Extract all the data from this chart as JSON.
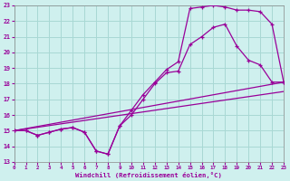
{
  "xlabel": "Windchill (Refroidissement éolien,°C)",
  "bg_color": "#cff0ee",
  "grid_color": "#a8d8d4",
  "line_color": "#990099",
  "xlim": [
    0,
    23
  ],
  "ylim": [
    13,
    23
  ],
  "yticks": [
    13,
    14,
    15,
    16,
    17,
    18,
    19,
    20,
    21,
    22,
    23
  ],
  "xticks": [
    0,
    1,
    2,
    3,
    4,
    5,
    6,
    7,
    8,
    9,
    10,
    11,
    12,
    13,
    14,
    15,
    16,
    17,
    18,
    19,
    20,
    21,
    22,
    23
  ],
  "series1_x": [
    0,
    1,
    2,
    3,
    4,
    5,
    6,
    7,
    8,
    9,
    10,
    11,
    12,
    13,
    14,
    15,
    16,
    17,
    18,
    19,
    20,
    21,
    22,
    23
  ],
  "series1_y": [
    15,
    15,
    14.7,
    14.9,
    15.1,
    15.2,
    14.9,
    13.7,
    13.5,
    15.3,
    16.3,
    17.3,
    18.1,
    18.9,
    19.4,
    22.8,
    22.9,
    23.0,
    22.9,
    22.7,
    22.7,
    22.6,
    21.8,
    18.1
  ],
  "series2_x": [
    0,
    1,
    2,
    3,
    4,
    5,
    6,
    7,
    8,
    9,
    10,
    11,
    12,
    13,
    14,
    15,
    16,
    17,
    18,
    19,
    20,
    21,
    22,
    23
  ],
  "series2_y": [
    15,
    15,
    14.7,
    14.9,
    15.1,
    15.2,
    14.9,
    13.7,
    13.5,
    15.3,
    16.0,
    17.0,
    18.0,
    18.7,
    18.8,
    20.5,
    21.0,
    21.6,
    21.8,
    20.4,
    19.5,
    19.2,
    18.1,
    18.1
  ],
  "series3_x": [
    0,
    23
  ],
  "series3_y": [
    15,
    18.1
  ],
  "series4_x": [
    0,
    23
  ],
  "series4_y": [
    15,
    17.5
  ]
}
